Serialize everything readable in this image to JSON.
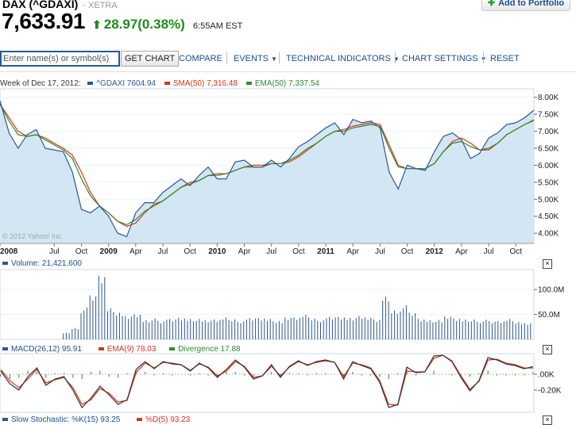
{
  "header": {
    "title": "DAX (^GDAXI)",
    "exchange": "- XETRA",
    "price": "7,633.91",
    "change": "28.97(0.38%)",
    "time": "6:55AM EST",
    "add_portfolio": "Add to Portfolio"
  },
  "toolbar": {
    "search_placeholder": "Enter name(s) or symbol(s)",
    "get_chart": "GET CHART",
    "compare": "COMPARE",
    "events": "EVENTS",
    "technical_indicators": "TECHNICAL INDICATORS",
    "chart_settings": "CHART SETTINGS",
    "reset": "RESET"
  },
  "main_chart": {
    "week_label": "Week of Dec 17, 2012:",
    "series_label": "^GDAXI 7604.94",
    "sma_label": "SMA(50) 7,316.48",
    "ema_label": "EMA(50) 7,337.54",
    "copyright": "© 2012 Yahoo! Inc.",
    "y_ticks": [
      "8.00K",
      "7.50K",
      "7.00K",
      "6.50K",
      "6.00K",
      "5.50K",
      "5.00K",
      "4.50K",
      "4.00K"
    ],
    "x_ticks": [
      "2008",
      "Jul",
      "Oct",
      "2009",
      "Apr",
      "Jul",
      "Oct",
      "2010",
      "Apr",
      "Jul",
      "Oct",
      "2011",
      "Apr",
      "Jul",
      "Oct",
      "2012",
      "Apr",
      "Jul",
      "Oct"
    ]
  },
  "volume": {
    "label": "Volume: 21,421,600",
    "y_ticks": [
      "100.0M",
      "50.0M"
    ]
  },
  "macd": {
    "label": "MACD(26,12) 95.91",
    "ema_label": "EMA(9) 78.03",
    "divergence_label": "Divergence 17.88",
    "y_ticks": [
      ".00K",
      "-0.20K"
    ]
  },
  "stochastic": {
    "k_label": "Slow Stochastic: %K(15) 93.25",
    "d_label": "%D(5) 93.23"
  },
  "colors": {
    "price_line": "#2d5596",
    "price_fill": "#d3e6f4",
    "sma": "#d9341b",
    "ema": "#2e8b2e",
    "macd": "#333333",
    "macd_signal": "#d9341b",
    "divergence": "#2e8b2e",
    "volume": "#2d5596",
    "up": "#1a8c1a",
    "link": "#1d4d8f"
  },
  "chart_data": [
    {
      "type": "line",
      "x": [
        "2008-01",
        "2008-02",
        "2008-03",
        "2008-04",
        "2008-05",
        "2008-06",
        "2008-07",
        "2008-08",
        "2008-09",
        "2008-10",
        "2008-11",
        "2008-12",
        "2009-01",
        "2009-02",
        "2009-03",
        "2009-04",
        "2009-05",
        "2009-06",
        "2009-07",
        "2009-08",
        "2009-09",
        "2009-10",
        "2009-11",
        "2009-12",
        "2010-01",
        "2010-02",
        "2010-03",
        "2010-04",
        "2010-05",
        "2010-06",
        "2010-07",
        "2010-08",
        "2010-09",
        "2010-10",
        "2010-11",
        "2010-12",
        "2011-01",
        "2011-02",
        "2011-03",
        "2011-04",
        "2011-05",
        "2011-06",
        "2011-07",
        "2011-08",
        "2011-09",
        "2011-10",
        "2011-11",
        "2011-12",
        "2012-01",
        "2012-02",
        "2012-03",
        "2012-04",
        "2012-05",
        "2012-06",
        "2012-07",
        "2012-08",
        "2012-09",
        "2012-10",
        "2012-11",
        "2012-12"
      ],
      "series": [
        {
          "name": "^GDAXI",
          "values": [
            7900,
            6950,
            6500,
            6900,
            7050,
            6500,
            6450,
            6400,
            5800,
            4700,
            4600,
            4800,
            4500,
            4000,
            3900,
            4600,
            4900,
            4900,
            5200,
            5400,
            5600,
            5400,
            5700,
            5950,
            5600,
            5600,
            6100,
            6150,
            5950,
            5950,
            6150,
            5950,
            6200,
            6550,
            6700,
            6900,
            7100,
            7250,
            6900,
            7350,
            7250,
            7300,
            7100,
            5800,
            5300,
            6000,
            5900,
            5850,
            6400,
            6850,
            6950,
            6750,
            6200,
            6350,
            6800,
            6950,
            7200,
            7250,
            7400,
            7620
          ]
        },
        {
          "name": "SMA(50)",
          "values": [
            7800,
            7400,
            7000,
            6850,
            6900,
            6800,
            6650,
            6500,
            6300,
            5800,
            5200,
            4800,
            4600,
            4350,
            4200,
            4300,
            4600,
            4850,
            4950,
            5150,
            5350,
            5500,
            5550,
            5700,
            5750,
            5750,
            5850,
            5950,
            6000,
            6000,
            6050,
            6050,
            6100,
            6250,
            6450,
            6650,
            6850,
            7000,
            7050,
            7150,
            7200,
            7250,
            7200,
            6600,
            6000,
            5900,
            5900,
            5900,
            6050,
            6400,
            6700,
            6800,
            6650,
            6450,
            6450,
            6650,
            6900,
            7050,
            7200,
            7320
          ]
        },
        {
          "name": "EMA(50)",
          "values": [
            7800,
            7300,
            6900,
            6850,
            6900,
            6750,
            6600,
            6450,
            6200,
            5600,
            5100,
            4800,
            4600,
            4350,
            4250,
            4400,
            4650,
            4800,
            4950,
            5150,
            5350,
            5450,
            5550,
            5700,
            5700,
            5750,
            5850,
            5950,
            5950,
            5950,
            6050,
            6050,
            6150,
            6300,
            6500,
            6650,
            6850,
            7000,
            7000,
            7100,
            7150,
            7200,
            7150,
            6500,
            5950,
            5900,
            5900,
            5900,
            6050,
            6400,
            6650,
            6700,
            6550,
            6450,
            6500,
            6650,
            6900,
            7050,
            7200,
            7340
          ]
        }
      ],
      "ylim": [
        3700,
        8250
      ]
    },
    {
      "type": "bar",
      "values": [
        0,
        0,
        0,
        0,
        0,
        0,
        0,
        12,
        22,
        58,
        82,
        125,
        58,
        52,
        42,
        48,
        35,
        40,
        36,
        38,
        42,
        38,
        40,
        35,
        38,
        40,
        38,
        36,
        40,
        42,
        38,
        36,
        40,
        42,
        45,
        40,
        38,
        42,
        44,
        40,
        46,
        40,
        38,
        78,
        55,
        62,
        50,
        40,
        36,
        38,
        42,
        40,
        36,
        38,
        36,
        34,
        36,
        38,
        34,
        30
      ],
      "ylim": [
        0,
        140
      ]
    },
    {
      "type": "line",
      "series": [
        {
          "name": "MACD(26,12)",
          "values": [
            40,
            -120,
            -200,
            -30,
            80,
            -140,
            -60,
            -30,
            -200,
            -420,
            -300,
            -150,
            -260,
            -380,
            -320,
            60,
            160,
            70,
            160,
            130,
            120,
            40,
            140,
            80,
            -40,
            60,
            180,
            90,
            -60,
            -20,
            120,
            -40,
            100,
            170,
            110,
            160,
            180,
            150,
            -60,
            160,
            110,
            70,
            -100,
            -420,
            -380,
            90,
            20,
            30,
            230,
            240,
            160,
            -40,
            -210,
            -80,
            210,
            180,
            130,
            110,
            70,
            96
          ]
        },
        {
          "name": "EMA(9)",
          "values": [
            60,
            -80,
            -170,
            -60,
            60,
            -110,
            -70,
            -40,
            -170,
            -380,
            -320,
            -180,
            -240,
            -350,
            -330,
            20,
            140,
            80,
            150,
            140,
            120,
            50,
            130,
            90,
            -20,
            40,
            160,
            100,
            -40,
            -20,
            100,
            -20,
            90,
            160,
            120,
            150,
            170,
            150,
            -30,
            140,
            120,
            80,
            -80,
            -380,
            -390,
            40,
            30,
            30,
            200,
            240,
            170,
            -20,
            -190,
            -90,
            180,
            190,
            140,
            120,
            80,
            78
          ]
        }
      ],
      "ylim": [
        -480,
        260
      ]
    }
  ]
}
